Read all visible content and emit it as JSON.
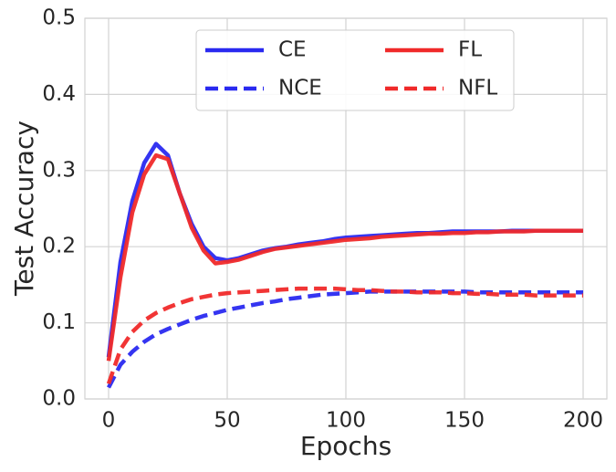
{
  "chart_data": {
    "type": "line",
    "xlabel": "Epochs",
    "ylabel": "Test Accuracy",
    "x": [
      0,
      5,
      10,
      15,
      20,
      25,
      30,
      35,
      40,
      45,
      50,
      55,
      60,
      65,
      70,
      75,
      80,
      85,
      90,
      95,
      100,
      105,
      110,
      115,
      120,
      125,
      130,
      135,
      140,
      145,
      150,
      155,
      160,
      165,
      170,
      175,
      180,
      185,
      190,
      195,
      200
    ],
    "series": [
      {
        "name": "CE",
        "color": "#2a2af0",
        "dash": false,
        "values": [
          0.055,
          0.18,
          0.26,
          0.31,
          0.335,
          0.32,
          0.27,
          0.23,
          0.2,
          0.185,
          0.182,
          0.185,
          0.19,
          0.195,
          0.198,
          0.2,
          0.203,
          0.205,
          0.207,
          0.21,
          0.212,
          0.213,
          0.214,
          0.215,
          0.216,
          0.217,
          0.218,
          0.218,
          0.219,
          0.22,
          0.22,
          0.22,
          0.22,
          0.22,
          0.221,
          0.221,
          0.221,
          0.221,
          0.221,
          0.221,
          0.221
        ]
      },
      {
        "name": "NCE",
        "color": "#2a2af0",
        "dash": true,
        "values": [
          0.015,
          0.045,
          0.062,
          0.075,
          0.085,
          0.092,
          0.098,
          0.104,
          0.109,
          0.113,
          0.117,
          0.12,
          0.123,
          0.126,
          0.128,
          0.131,
          0.133,
          0.135,
          0.137,
          0.138,
          0.139,
          0.14,
          0.141,
          0.141,
          0.141,
          0.141,
          0.141,
          0.141,
          0.141,
          0.141,
          0.141,
          0.14,
          0.14,
          0.14,
          0.14,
          0.14,
          0.14,
          0.14,
          0.14,
          0.14,
          0.14
        ]
      },
      {
        "name": "FL",
        "color": "#f02a2a",
        "dash": false,
        "values": [
          0.05,
          0.16,
          0.245,
          0.295,
          0.32,
          0.315,
          0.27,
          0.225,
          0.195,
          0.178,
          0.18,
          0.183,
          0.188,
          0.193,
          0.197,
          0.199,
          0.201,
          0.203,
          0.205,
          0.207,
          0.209,
          0.21,
          0.211,
          0.213,
          0.214,
          0.215,
          0.216,
          0.217,
          0.217,
          0.218,
          0.218,
          0.219,
          0.219,
          0.22,
          0.22,
          0.22,
          0.221,
          0.221,
          0.221,
          0.221,
          0.221
        ]
      },
      {
        "name": "NFL",
        "color": "#f02a2a",
        "dash": true,
        "values": [
          0.02,
          0.065,
          0.088,
          0.103,
          0.113,
          0.12,
          0.126,
          0.131,
          0.134,
          0.137,
          0.139,
          0.14,
          0.141,
          0.142,
          0.143,
          0.144,
          0.145,
          0.145,
          0.145,
          0.145,
          0.144,
          0.143,
          0.143,
          0.142,
          0.141,
          0.141,
          0.14,
          0.14,
          0.14,
          0.139,
          0.139,
          0.138,
          0.138,
          0.137,
          0.137,
          0.137,
          0.136,
          0.136,
          0.136,
          0.136,
          0.136
        ]
      }
    ],
    "xlim": [
      -10,
      210
    ],
    "xticks": [
      0,
      50,
      100,
      150,
      200
    ],
    "ylim": [
      0,
      0.5
    ],
    "yticks": [
      {
        "value": 0,
        "label": "0.0"
      },
      {
        "value": 0.1,
        "label": "0.1"
      },
      {
        "value": 0.2,
        "label": "0.2"
      },
      {
        "value": 0.3,
        "label": "0.3"
      },
      {
        "value": 0.4,
        "label": "0.4"
      },
      {
        "value": 0.5,
        "label": "0.5"
      }
    ],
    "grid": true,
    "legend": "upper center"
  }
}
